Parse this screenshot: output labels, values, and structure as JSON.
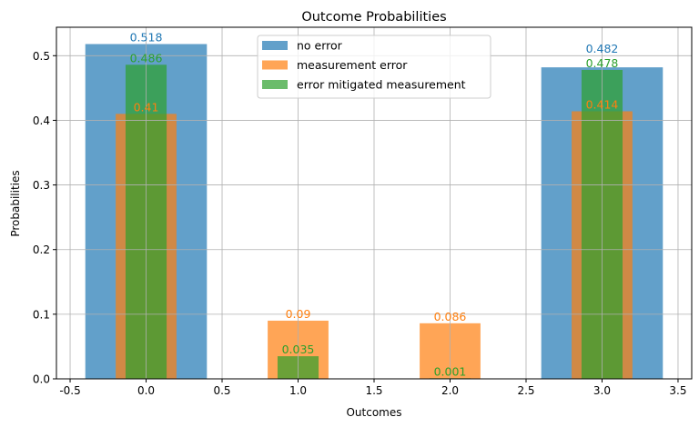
{
  "chart_data": {
    "type": "bar",
    "title": "Outcome Probabilities",
    "xlabel": "Outcomes",
    "ylabel": "Probabilities",
    "xlim": [
      -0.59,
      3.59
    ],
    "ylim": [
      0,
      0.544
    ],
    "xticks": [
      "-0.5",
      "0.0",
      "0.5",
      "1.0",
      "1.5",
      "2.0",
      "2.5",
      "3.0",
      "3.5"
    ],
    "yticks": [
      "0.0",
      "0.1",
      "0.2",
      "0.3",
      "0.4",
      "0.5"
    ],
    "grid": true,
    "legend_position": "top-center",
    "series": [
      {
        "name": "no error",
        "color": "#1f77b4",
        "alpha": 0.7,
        "bar_width": 0.8,
        "x": [
          0,
          3
        ],
        "values": [
          0.518,
          0.482
        ],
        "labels": [
          "0.518",
          "0.482"
        ]
      },
      {
        "name": "measurement error",
        "color": "#ff7f0e",
        "alpha": 0.7,
        "bar_width": 0.4,
        "x": [
          0,
          1,
          2,
          3
        ],
        "values": [
          0.41,
          0.09,
          0.086,
          0.414
        ],
        "labels": [
          "0.41",
          "0.09",
          "0.086",
          "0.414"
        ]
      },
      {
        "name": "error mitigated measurement",
        "color": "#2ca02c",
        "alpha": 0.7,
        "bar_width": 0.27,
        "x": [
          0,
          1,
          2,
          3
        ],
        "values": [
          0.486,
          0.035,
          0.001,
          0.478
        ],
        "labels": [
          "0.486",
          "0.035",
          "0.001",
          "0.478"
        ]
      }
    ]
  }
}
